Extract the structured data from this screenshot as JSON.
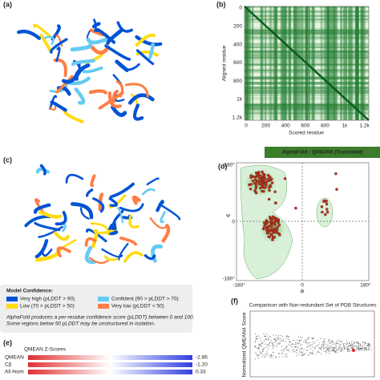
{
  "panels": {
    "a": {
      "label": "(a)"
    },
    "b": {
      "label": "(b)",
      "y_axis_label": "Aligned residue",
      "x_axis_label": "Scored residue",
      "y_ticks": [
        "0",
        "200",
        "400",
        "600",
        "800",
        "1k",
        "1.2k"
      ],
      "x_ticks": [
        "0",
        "200",
        "400",
        "600",
        "800",
        "1k",
        "1.2k"
      ]
    },
    "c": {
      "label": "(c)",
      "legend": {
        "title": "Model Confidence:",
        "items": [
          {
            "label": "Very high (pLDDT > 90)",
            "color": "#0053d6"
          },
          {
            "label": "Confident (90 > pLDDT > 70)",
            "color": "#65cbf3"
          },
          {
            "label": "Low (70 > pLDDT > 50)",
            "color": "#ffdb13"
          },
          {
            "label": "Very low (pLDDT < 50)",
            "color": "#ff7d45"
          }
        ],
        "note": [
          "AlphaFold produces a per-residue confidence score (pLDDT) between 0 and 100.",
          "Some regions below 50 pLDDT may be unstructured in isolation."
        ]
      }
    },
    "d": {
      "label": "(d)",
      "banner": "AlphaFold - Q9SUA6 (Truncated)",
      "y_axis_label": "Ψ",
      "x_axis_label": "Φ",
      "y_ticks": [
        "180°",
        "0",
        "-180°"
      ],
      "x_ticks": [
        "-180°",
        "0",
        "180°"
      ]
    },
    "e": {
      "label": "(e)",
      "title": "QMEAN Z-Scores",
      "rows": [
        {
          "name": "QMEAN",
          "value": "-2.86"
        },
        {
          "name": "Cβ",
          "value": "-1.20"
        },
        {
          "name": "All Atom",
          "value": "0.33"
        }
      ]
    },
    "f": {
      "label": "(f)",
      "title": "Comparison with Non-redundant Set of PDB Structures",
      "y_axis_label": "Normalized QMEAN4 Score"
    }
  }
}
